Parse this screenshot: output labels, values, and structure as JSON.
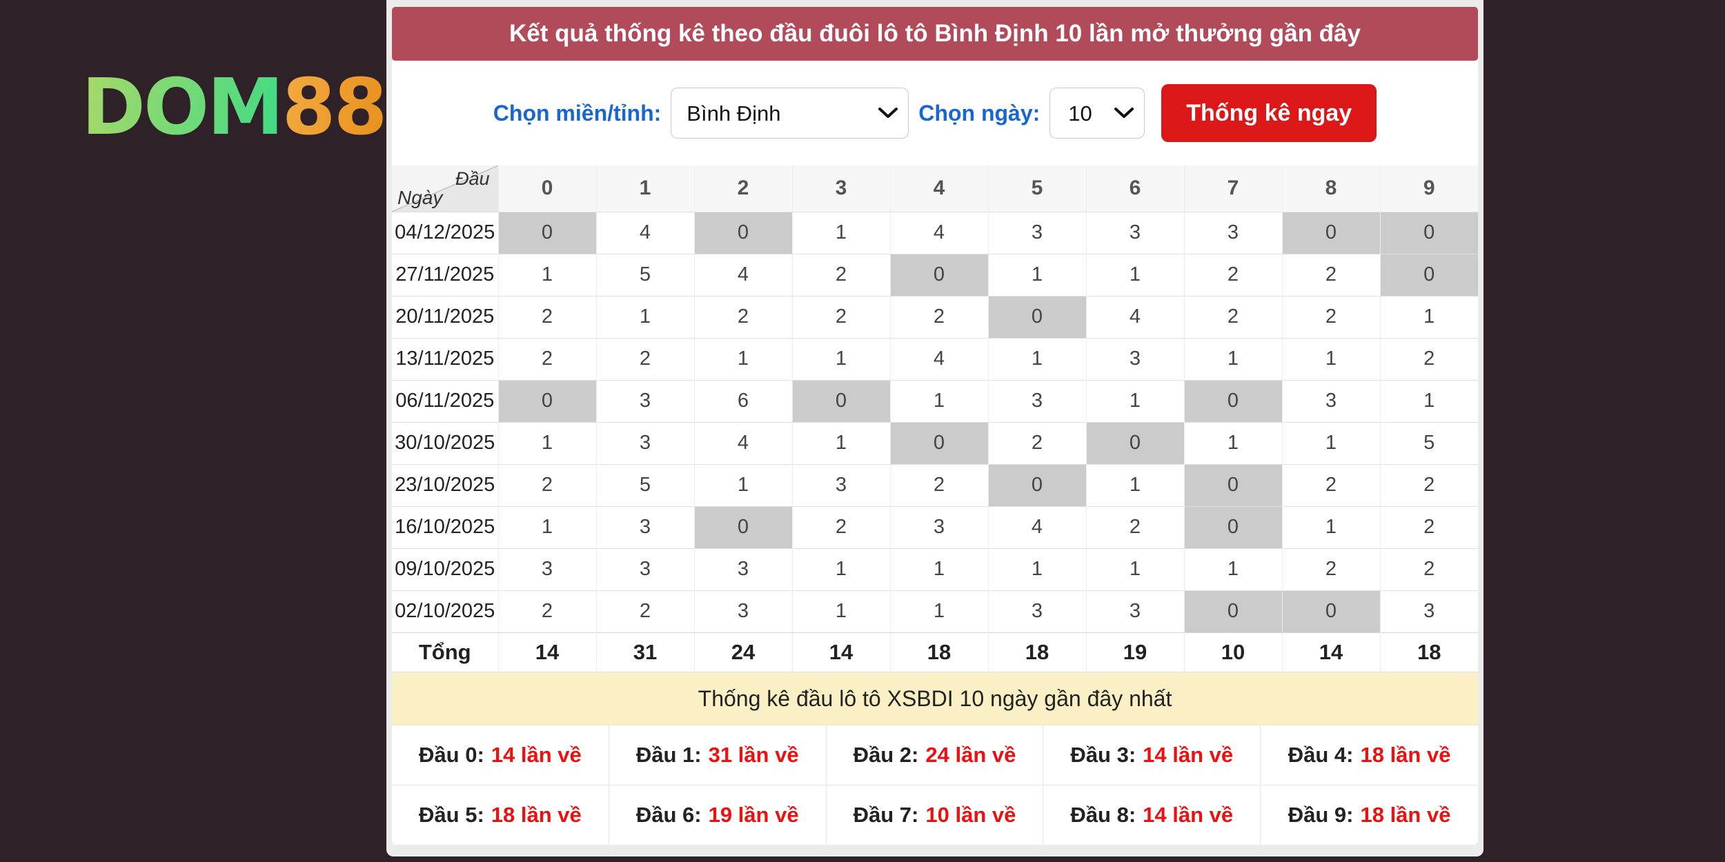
{
  "colors": {
    "page_bg": "#2e2128",
    "panel_bg": "#ececec",
    "title_bg": "#b14a59",
    "title_text": "#ffffff",
    "label_blue": "#1766d1",
    "button_red": "#dc1717",
    "highlight": "#cbcbcb",
    "banner_bg": "#fbf0c5",
    "stat_red": "#ee0f0f",
    "logo_green_1": "#a9d968",
    "logo_green_2": "#3fda85",
    "logo_orange_1": "#f3ab41",
    "logo_orange_2": "#e8901c",
    "select_border": "#c9c9c9"
  },
  "logo": {
    "text_green": "DOM",
    "text_orange": "88"
  },
  "header": {
    "title": "Kết quả thống kê theo đầu đuôi lô tô Bình Định 10 lần mở thưởng gần đây"
  },
  "filters": {
    "region_label": "Chọn miền/tỉnh:",
    "region_value": "Bình Định",
    "day_label": "Chọn ngày:",
    "day_value": "10",
    "submit_label": "Thống kê ngay"
  },
  "table": {
    "corner_top": "Đầu",
    "corner_bottom": "Ngày",
    "columns": [
      "0",
      "1",
      "2",
      "3",
      "4",
      "5",
      "6",
      "7",
      "8",
      "9"
    ],
    "rows": [
      {
        "date": "04/12/2025",
        "values": [
          0,
          4,
          0,
          1,
          4,
          3,
          3,
          3,
          0,
          0
        ]
      },
      {
        "date": "27/11/2025",
        "values": [
          1,
          5,
          4,
          2,
          0,
          1,
          1,
          2,
          2,
          0
        ]
      },
      {
        "date": "20/11/2025",
        "values": [
          2,
          1,
          2,
          2,
          2,
          0,
          4,
          2,
          2,
          1
        ]
      },
      {
        "date": "13/11/2025",
        "values": [
          2,
          2,
          1,
          1,
          4,
          1,
          3,
          1,
          1,
          2
        ]
      },
      {
        "date": "06/11/2025",
        "values": [
          0,
          3,
          6,
          0,
          1,
          3,
          1,
          0,
          3,
          1
        ]
      },
      {
        "date": "30/10/2025",
        "values": [
          1,
          3,
          4,
          1,
          0,
          2,
          0,
          1,
          1,
          5
        ]
      },
      {
        "date": "23/10/2025",
        "values": [
          2,
          5,
          1,
          3,
          2,
          0,
          1,
          0,
          2,
          2
        ]
      },
      {
        "date": "16/10/2025",
        "values": [
          1,
          3,
          0,
          2,
          3,
          4,
          2,
          0,
          1,
          2
        ]
      },
      {
        "date": "09/10/2025",
        "values": [
          3,
          3,
          3,
          1,
          1,
          1,
          1,
          1,
          2,
          2
        ]
      },
      {
        "date": "02/10/2025",
        "values": [
          2,
          2,
          3,
          1,
          1,
          3,
          3,
          0,
          0,
          3
        ]
      }
    ],
    "total_label": "Tổng",
    "totals": [
      14,
      31,
      24,
      14,
      18,
      18,
      19,
      10,
      14,
      18
    ],
    "highlight_value": 0
  },
  "banner": {
    "text": "Thống kê đầu lô tô XSBDI 10 ngày gần đây nhất"
  },
  "stats": {
    "items": [
      {
        "label": "Đầu 0:",
        "value": "14 lần về"
      },
      {
        "label": "Đầu 1:",
        "value": "31 lần về"
      },
      {
        "label": "Đầu 2:",
        "value": "24 lần về"
      },
      {
        "label": "Đầu 3:",
        "value": "14 lần về"
      },
      {
        "label": "Đầu 4:",
        "value": "18 lần về"
      },
      {
        "label": "Đầu 5:",
        "value": "18 lần về"
      },
      {
        "label": "Đầu 6:",
        "value": "19 lần về"
      },
      {
        "label": "Đầu 7:",
        "value": "10 lần về"
      },
      {
        "label": "Đầu 8:",
        "value": "14 lần về"
      },
      {
        "label": "Đầu 9:",
        "value": "18 lần về"
      }
    ]
  }
}
